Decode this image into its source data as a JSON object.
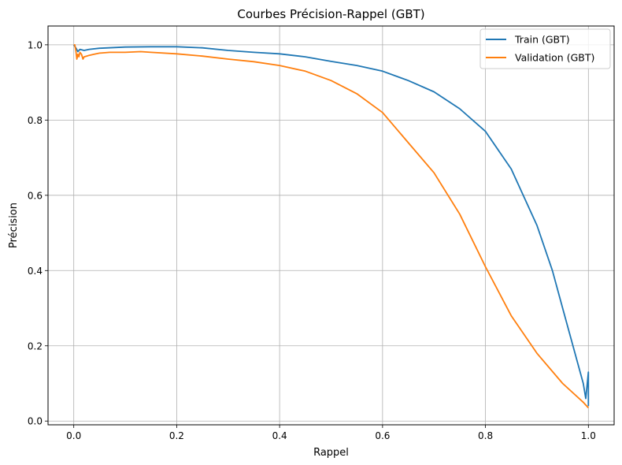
{
  "chart_data": {
    "type": "line",
    "title": "Courbes Précision-Rappel (GBT)",
    "xlabel": "Rappel",
    "ylabel": "Précision",
    "xlim": [
      -0.05,
      1.05
    ],
    "ylim": [
      -0.01,
      1.05
    ],
    "xticks": [
      0.0,
      0.2,
      0.4,
      0.6,
      0.8,
      1.0
    ],
    "xtick_labels": [
      "0.0",
      "0.2",
      "0.4",
      "0.6",
      "0.8",
      "1.0"
    ],
    "yticks": [
      0.0,
      0.2,
      0.4,
      0.6,
      0.8,
      1.0
    ],
    "ytick_labels": [
      "0.0",
      "0.2",
      "0.4",
      "0.6",
      "0.8",
      "1.0"
    ],
    "grid": true,
    "legend_position": "top-right",
    "series": [
      {
        "name": "Train (GBT)",
        "color": "#1f77b4",
        "x": [
          0.0,
          0.005,
          0.008,
          0.012,
          0.02,
          0.03,
          0.05,
          0.1,
          0.15,
          0.2,
          0.25,
          0.3,
          0.35,
          0.4,
          0.45,
          0.5,
          0.55,
          0.6,
          0.65,
          0.7,
          0.75,
          0.8,
          0.85,
          0.9,
          0.93,
          0.95,
          0.97,
          0.99,
          0.995,
          1.0,
          1.0
        ],
        "y": [
          1.0,
          0.99,
          0.982,
          0.988,
          0.985,
          0.988,
          0.991,
          0.994,
          0.995,
          0.995,
          0.992,
          0.985,
          0.98,
          0.976,
          0.968,
          0.956,
          0.945,
          0.93,
          0.905,
          0.875,
          0.83,
          0.77,
          0.67,
          0.52,
          0.4,
          0.3,
          0.2,
          0.1,
          0.06,
          0.13,
          0.04
        ]
      },
      {
        "name": "Validation (GBT)",
        "color": "#ff7f0e",
        "x": [
          0.0,
          0.002,
          0.004,
          0.006,
          0.008,
          0.01,
          0.012,
          0.015,
          0.018,
          0.02,
          0.025,
          0.03,
          0.04,
          0.05,
          0.07,
          0.1,
          0.13,
          0.15,
          0.2,
          0.25,
          0.3,
          0.35,
          0.4,
          0.45,
          0.5,
          0.55,
          0.6,
          0.65,
          0.7,
          0.75,
          0.8,
          0.85,
          0.9,
          0.95,
          0.99,
          1.0
        ],
        "y": [
          1.0,
          1.0,
          0.985,
          0.962,
          0.975,
          0.968,
          0.98,
          0.975,
          0.962,
          0.968,
          0.97,
          0.972,
          0.975,
          0.978,
          0.98,
          0.98,
          0.982,
          0.98,
          0.976,
          0.97,
          0.962,
          0.955,
          0.945,
          0.93,
          0.905,
          0.87,
          0.82,
          0.74,
          0.66,
          0.55,
          0.41,
          0.28,
          0.18,
          0.1,
          0.05,
          0.035
        ]
      }
    ]
  }
}
